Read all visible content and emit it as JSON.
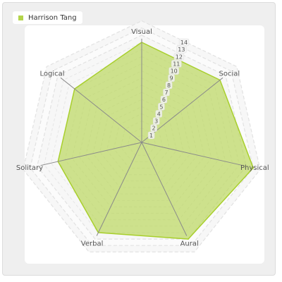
{
  "chart_data": {
    "type": "radar",
    "axes": [
      "Visual",
      "Social",
      "Physical",
      "Aural",
      "Verbal",
      "Solitary",
      "Logical"
    ],
    "ticks": [
      1,
      2,
      3,
      4,
      5,
      6,
      7,
      8,
      9,
      10,
      11,
      12,
      13,
      14
    ],
    "range": [
      0,
      14
    ],
    "grid": true,
    "legend_position": "top-left",
    "series": [
      {
        "name": "Harrison Tang",
        "values": [
          14,
          14,
          16,
          15,
          14,
          12,
          12
        ],
        "color": "#b3d44a"
      }
    ]
  }
}
